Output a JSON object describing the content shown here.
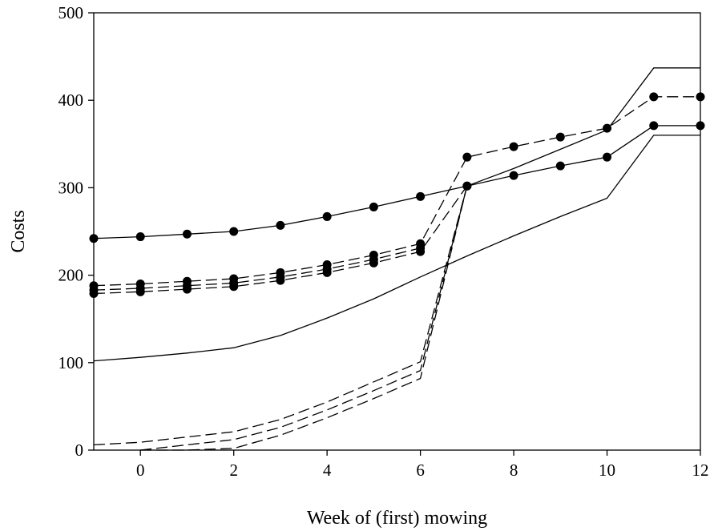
{
  "chart_data": {
    "type": "line",
    "title": "",
    "xlabel": "Week of (first) mowing",
    "ylabel": "Costs",
    "xlim": [
      -1,
      12
    ],
    "ylim": [
      0,
      500
    ],
    "x_ticks": [
      0,
      2,
      4,
      6,
      8,
      10,
      12
    ],
    "y_ticks": [
      0,
      100,
      200,
      300,
      400,
      500
    ],
    "grid": false,
    "legend": "none",
    "series": [
      {
        "style": "solid-markers",
        "x": [
          -1,
          0,
          1,
          2,
          3,
          4,
          5,
          6,
          7,
          8,
          9,
          10,
          11,
          12
        ],
        "y": [
          242,
          244,
          247,
          250,
          257,
          267,
          278,
          290,
          302,
          314,
          325,
          335,
          371,
          371
        ]
      },
      {
        "style": "dashed-markers",
        "x": [
          -1,
          0,
          1,
          2,
          3,
          4,
          5,
          6,
          7,
          8,
          9,
          10,
          11,
          12
        ],
        "y": [
          188,
          190,
          193,
          196,
          203,
          212,
          223,
          236,
          335,
          347,
          358,
          368,
          404,
          404
        ]
      },
      {
        "style": "dashed-markers",
        "x": [
          -1,
          0,
          1,
          2,
          3,
          4,
          5,
          6
        ],
        "y": [
          183,
          185,
          188,
          191,
          198,
          207,
          218,
          231
        ]
      },
      {
        "style": "dashed-markers",
        "x": [
          -1,
          0,
          1,
          2,
          3,
          4,
          5,
          6,
          7
        ],
        "y": [
          179,
          181,
          184,
          187,
          194,
          203,
          214,
          227,
          302
        ]
      },
      {
        "style": "solid",
        "x": [
          -1,
          0,
          1,
          2,
          3,
          4,
          5,
          6,
          7,
          8,
          9,
          10,
          11,
          12
        ],
        "y": [
          102,
          106,
          111,
          117,
          131,
          151,
          173,
          198,
          222,
          245,
          267,
          288,
          360,
          360
        ]
      },
      {
        "style": "solid",
        "x": [
          7,
          8,
          9,
          10,
          11,
          12
        ],
        "y": [
          302,
          322,
          344,
          366,
          437,
          437
        ]
      },
      {
        "style": "dashed",
        "x": [
          -1,
          0,
          1,
          2,
          3,
          4,
          5,
          6,
          7
        ],
        "y": [
          6,
          9,
          15,
          21,
          35,
          55,
          78,
          101,
          302
        ]
      },
      {
        "style": "dashed",
        "x": [
          0,
          1,
          2,
          3,
          4,
          5,
          6,
          7
        ],
        "y": [
          0,
          6,
          12,
          26,
          46,
          68,
          91,
          302
        ]
      },
      {
        "style": "dashed",
        "x": [
          0,
          1,
          2,
          3,
          4,
          5,
          6,
          7
        ],
        "y": [
          0,
          0,
          2,
          17,
          37,
          59,
          82,
          302
        ]
      }
    ]
  }
}
